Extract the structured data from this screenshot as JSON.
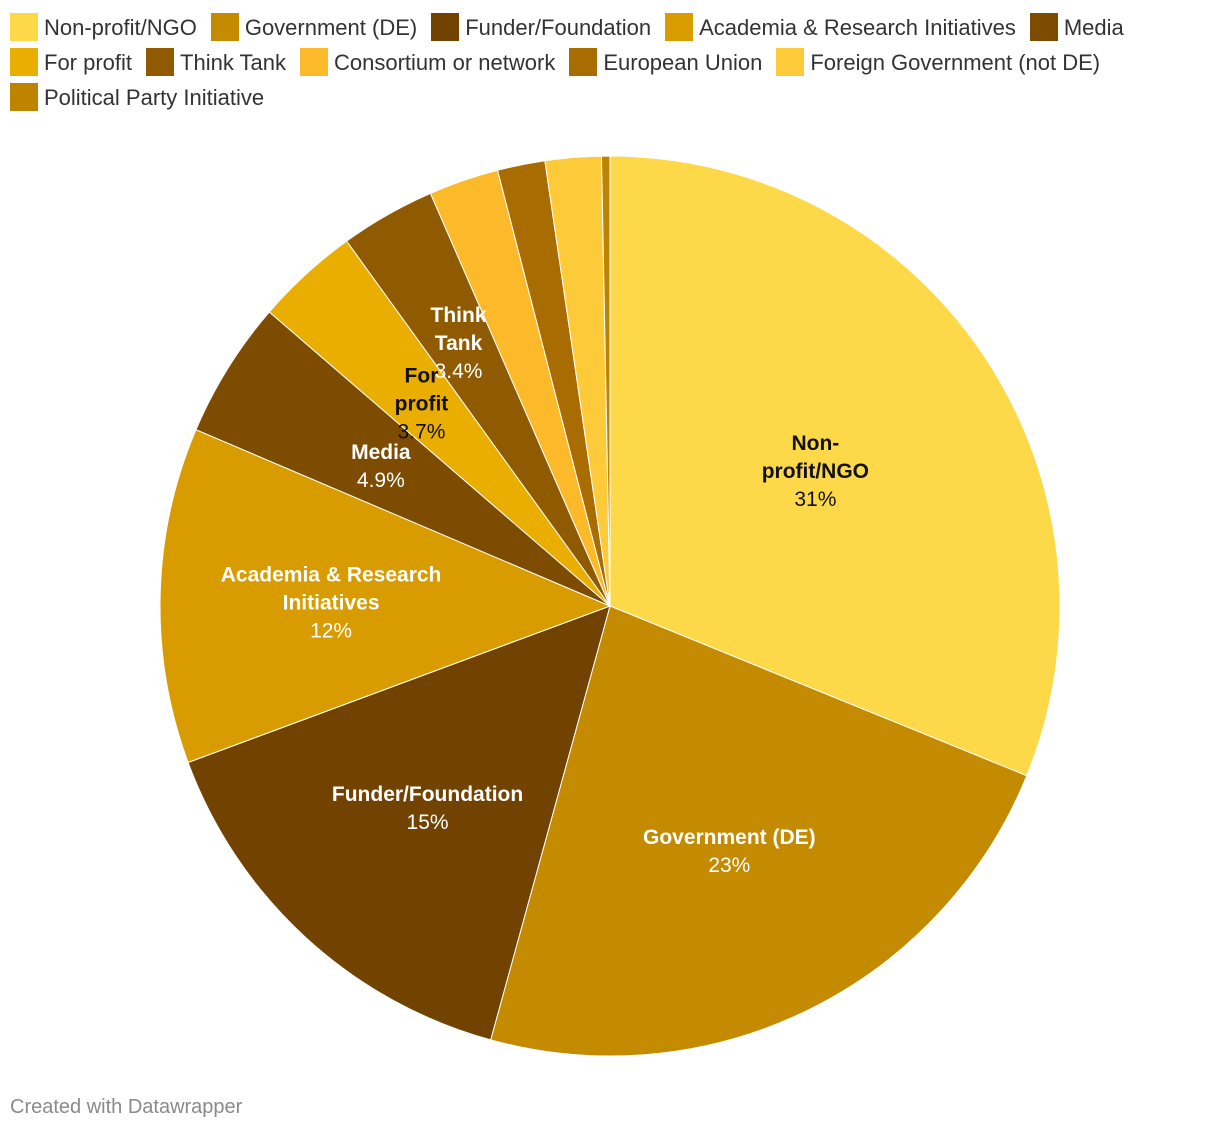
{
  "chart_data": {
    "type": "pie",
    "title": "",
    "slices": [
      {
        "label": "Non-profit/NGO",
        "value": 31,
        "value_label": "31%",
        "color": "#FDD94A",
        "label_color": "#111111"
      },
      {
        "label": "Government (DE)",
        "value": 23,
        "value_label": "23%",
        "color": "#C48A00",
        "label_color": "#ffffff"
      },
      {
        "label": "Funder/Foundation",
        "value": 15,
        "value_label": "15%",
        "color": "#714200",
        "label_color": "#ffffff"
      },
      {
        "label": "Academia & Research Initiatives",
        "value": 12,
        "value_label": "12%",
        "color": "#D99C00",
        "label_color": "#ffffff"
      },
      {
        "label": "Media",
        "value": 4.9,
        "value_label": "4.9%",
        "color": "#7D4C00",
        "label_color": "#ffffff"
      },
      {
        "label": "For profit",
        "value": 3.7,
        "value_label": "3.7%",
        "color": "#EAAE00",
        "label_color": "#111111"
      },
      {
        "label": "Think Tank",
        "value": 3.4,
        "value_label": "3.4%",
        "color": "#8F5A00",
        "label_color": "#ffffff"
      },
      {
        "label": "Consortium or network",
        "value": 2.5,
        "value_label": "",
        "color": "#FCBA2A",
        "label_color": "#111111"
      },
      {
        "label": "European Union",
        "value": 1.7,
        "value_label": "",
        "color": "#A86C00",
        "label_color": "#ffffff"
      },
      {
        "label": "Foreign Government (not DE)",
        "value": 2.0,
        "value_label": "",
        "color": "#FDCB3A",
        "label_color": "#111111"
      },
      {
        "label": "Political Party Initiative",
        "value": 0.3,
        "value_label": "",
        "color": "#BE8400",
        "label_color": "#ffffff"
      }
    ],
    "legend_position": "top",
    "legend": [
      "Non-profit/NGO",
      "Government (DE)",
      "Funder/Foundation",
      "Academia & Research Initiatives",
      "Media",
      "For profit",
      "Think Tank",
      "Consortium or network",
      "European Union",
      "Foreign Government (not DE)",
      "Political Party Initiative"
    ]
  },
  "footer": {
    "credit": "Created with Datawrapper"
  }
}
